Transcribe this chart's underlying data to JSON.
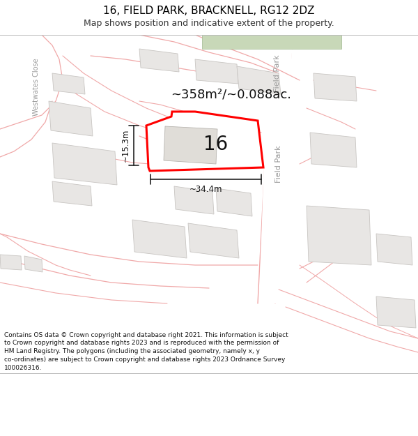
{
  "title": "16, FIELD PARK, BRACKNELL, RG12 2DZ",
  "subtitle": "Map shows position and indicative extent of the property.",
  "footer": "Contains OS data © Crown copyright and database right 2021. This information is subject to Crown copyright and database rights 2023 and is reproduced with the permission of HM Land Registry. The polygons (including the associated geometry, namely x, y co-ordinates) are subject to Crown copyright and database rights 2023 Ordnance Survey 100026316.",
  "area_label": "~358m²/~0.088ac.",
  "number_label": "16",
  "width_label": "~34.4m",
  "height_label": "~15.3m",
  "map_bg": "#ffffff",
  "building_fill": "#e8e6e4",
  "building_edge": "#c8c5c2",
  "highlight_color": "#ff0000",
  "road_line_color": "#f0a8a8",
  "road_fill": "#ffffff",
  "street_color": "#aaaaaa",
  "street_label_field_park": "Field Park",
  "street_label_westwates": "Westwates Close",
  "green_fill": "#c8d8b8"
}
